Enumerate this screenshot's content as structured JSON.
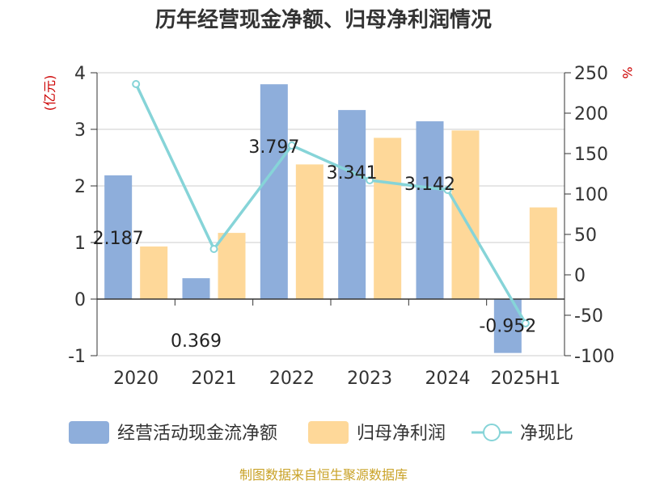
{
  "chart_data": {
    "type": "bar",
    "title": "历年经营现金净额、归母净利润情况",
    "categories": [
      "2020",
      "2021",
      "2022",
      "2023",
      "2024",
      "2025H1"
    ],
    "left_unit": "(亿元)",
    "right_unit": "%",
    "left_ylim": [
      -1,
      4
    ],
    "left_ticks": [
      "-1",
      "0",
      "1",
      "2",
      "3",
      "4"
    ],
    "right_ylim": [
      -100,
      250
    ],
    "right_ticks": [
      "-100",
      "-50",
      "0",
      "50",
      "100",
      "150",
      "200",
      "250"
    ],
    "grid": true,
    "legend_position": "bottom",
    "series": [
      {
        "name": "经营活动现金流净额",
        "kind": "bar",
        "axis": "left",
        "color": "#8eaedb",
        "values": [
          2.187,
          0.369,
          3.797,
          3.341,
          3.142,
          -0.952
        ],
        "labels": [
          "2.187",
          "0.369",
          "3.797",
          "3.341",
          "3.142",
          "-0.952"
        ]
      },
      {
        "name": "归母净利润",
        "kind": "bar",
        "axis": "left",
        "color": "#fed899",
        "values": [
          0.93,
          1.17,
          2.38,
          2.85,
          2.98,
          1.62
        ]
      },
      {
        "name": "净现比",
        "kind": "line",
        "axis": "right",
        "color": "#86d4d8",
        "values": [
          236,
          32,
          160,
          117,
          105,
          -60
        ]
      }
    ],
    "source": "制图数据来自恒生聚源数据库"
  }
}
